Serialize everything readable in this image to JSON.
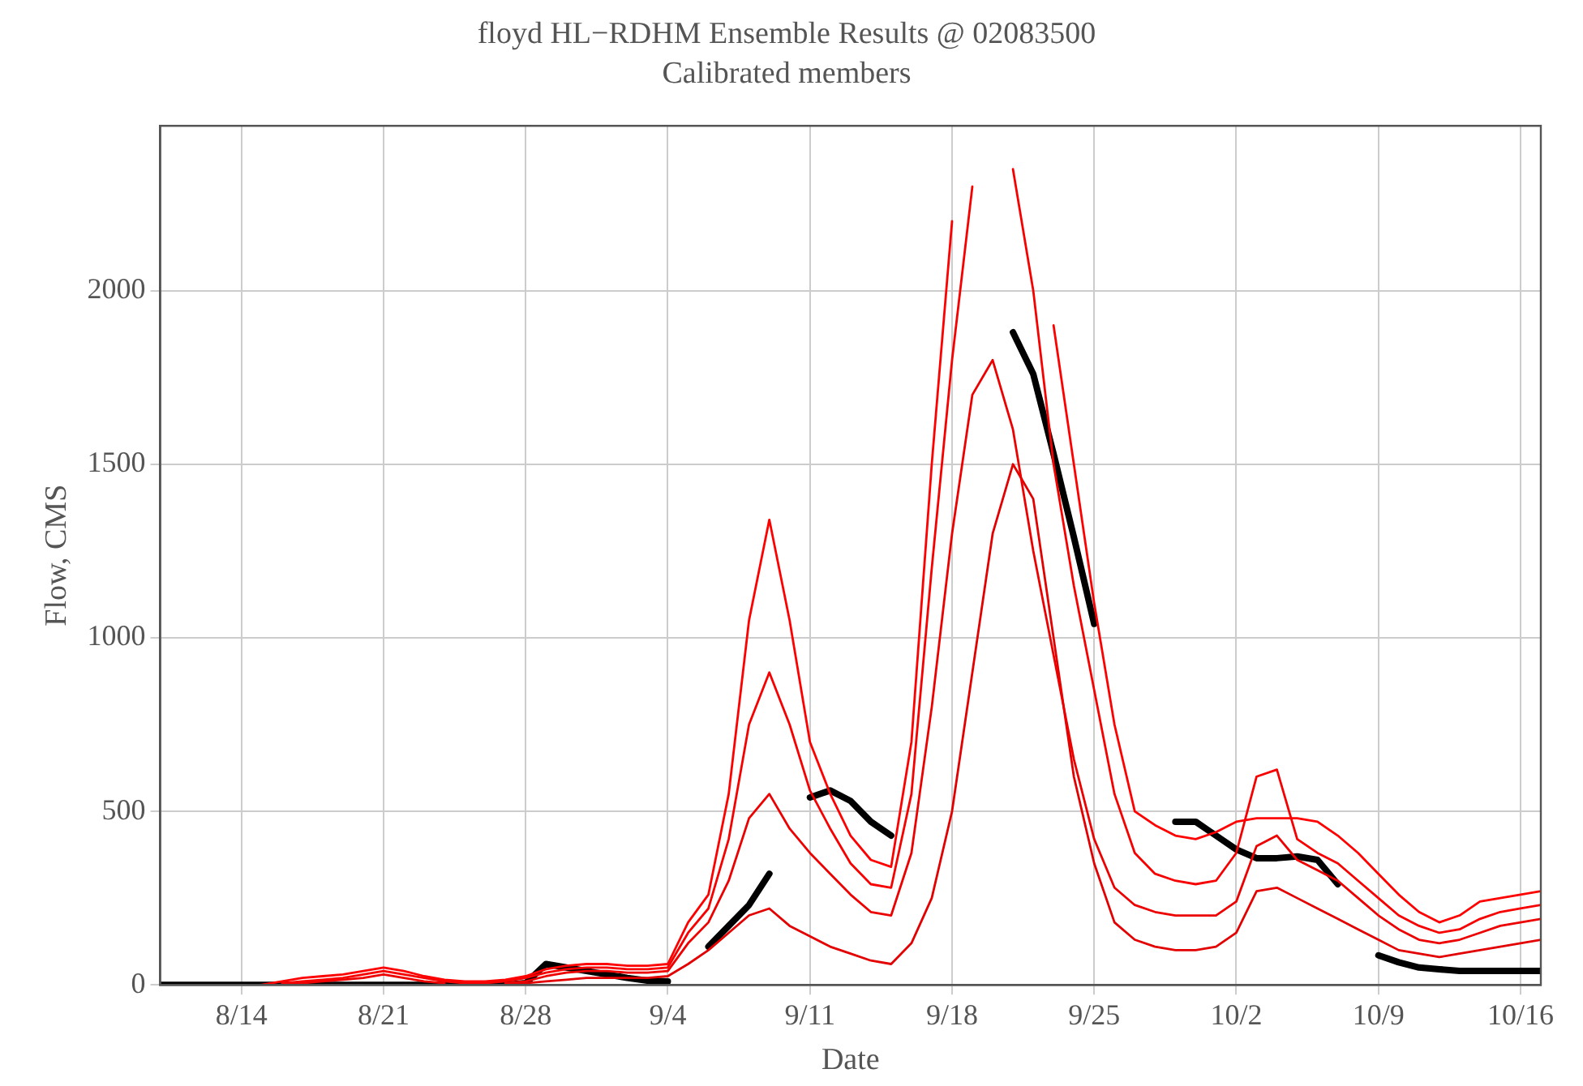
{
  "chart_data": {
    "type": "line",
    "title": "floyd HL−RDHM Ensemble Results @ 02083500",
    "subtitle": "Calibrated members",
    "xlabel": "Date",
    "ylabel": "Flow, CMS",
    "x": [
      "--08-10",
      "--08-11",
      "--08-12",
      "--08-13",
      "--08-14",
      "--08-15",
      "--08-16",
      "--08-17",
      "--08-18",
      "--08-19",
      "--08-20",
      "--08-21",
      "--08-22",
      "--08-23",
      "--08-24",
      "--08-25",
      "--08-26",
      "--08-27",
      "--08-28",
      "--08-29",
      "--08-30",
      "--08-31",
      "--09-01",
      "--09-02",
      "--09-03",
      "--09-04",
      "--09-05",
      "--09-06",
      "--09-07",
      "--09-08",
      "--09-09",
      "--09-10",
      "--09-11",
      "--09-12",
      "--09-13",
      "--09-14",
      "--09-15",
      "--09-16",
      "--09-17",
      "--09-18",
      "--09-19",
      "--09-20",
      "--09-21",
      "--09-22",
      "--09-23",
      "--09-24",
      "--09-25",
      "--09-26",
      "--09-27",
      "--09-28",
      "--09-29",
      "--09-30",
      "--10-01",
      "--10-02",
      "--10-03",
      "--10-04",
      "--10-05",
      "--10-06",
      "--10-07",
      "--10-08",
      "--10-09",
      "--10-10",
      "--10-11",
      "--10-12",
      "--10-13",
      "--10-14",
      "--10-15",
      "--10-16",
      "--10-17"
    ],
    "series": [
      {
        "color": "#ff0000",
        "values": [
          null,
          null,
          null,
          null,
          null,
          0,
          10,
          20,
          25,
          30,
          40,
          50,
          40,
          25,
          15,
          10,
          10,
          15,
          25,
          45,
          55,
          60,
          60,
          55,
          55,
          60,
          180,
          260,
          550,
          1050,
          1340,
          1050,
          700,
          550,
          430,
          360,
          340,
          700,
          1500,
          2200,
          null,
          null,
          null,
          null,
          1900,
          1500,
          1100,
          750,
          500,
          460,
          430,
          420,
          440,
          470,
          480,
          480,
          480,
          470,
          430,
          380,
          320,
          260,
          210,
          180,
          200,
          240,
          250,
          260,
          270
        ]
      },
      {
        "color": "#f60000",
        "values": [
          null,
          null,
          null,
          null,
          null,
          null,
          5,
          10,
          15,
          20,
          30,
          40,
          30,
          20,
          10,
          5,
          5,
          10,
          20,
          35,
          45,
          50,
          50,
          45,
          45,
          50,
          150,
          220,
          420,
          750,
          900,
          750,
          560,
          450,
          350,
          290,
          280,
          550,
          1200,
          1800,
          2300,
          null,
          2350,
          2000,
          1500,
          1150,
          850,
          550,
          380,
          320,
          300,
          290,
          300,
          380,
          600,
          620,
          420,
          380,
          350,
          300,
          250,
          200,
          170,
          150,
          160,
          190,
          210,
          220,
          230
        ]
      },
      {
        "color": "#ec0000",
        "values": [
          null,
          null,
          null,
          null,
          null,
          null,
          0,
          5,
          10,
          15,
          20,
          30,
          20,
          10,
          5,
          null,
          null,
          5,
          10,
          25,
          35,
          40,
          40,
          35,
          35,
          40,
          120,
          180,
          300,
          480,
          550,
          450,
          380,
          320,
          260,
          210,
          200,
          380,
          800,
          1300,
          1700,
          1800,
          1600,
          1250,
          950,
          650,
          420,
          280,
          230,
          210,
          200,
          200,
          200,
          240,
          400,
          430,
          360,
          330,
          300,
          250,
          200,
          160,
          130,
          120,
          130,
          150,
          170,
          180,
          190
        ]
      },
      {
        "color": "#e20000",
        "values": [
          null,
          null,
          null,
          null,
          null,
          null,
          null,
          null,
          null,
          null,
          null,
          null,
          null,
          null,
          null,
          null,
          null,
          0,
          5,
          10,
          15,
          20,
          20,
          20,
          20,
          25,
          60,
          100,
          150,
          200,
          220,
          170,
          140,
          110,
          90,
          70,
          60,
          120,
          250,
          500,
          900,
          1300,
          1500,
          1400,
          1000,
          600,
          350,
          180,
          130,
          110,
          100,
          100,
          110,
          150,
          270,
          280,
          250,
          220,
          190,
          160,
          130,
          100,
          90,
          80,
          90,
          100,
          110,
          120,
          130
        ]
      },
      {
        "color": "#000000",
        "values": [
          0,
          0,
          0,
          0,
          0,
          0,
          0,
          0,
          0,
          0,
          0,
          0,
          0,
          0,
          0,
          0,
          0,
          0,
          5,
          60,
          50,
          40,
          30,
          20,
          12,
          10,
          null,
          110,
          170,
          230,
          320,
          null,
          540,
          560,
          530,
          470,
          430,
          null,
          null,
          null,
          null,
          null,
          1880,
          1760,
          1530,
          1290,
          1040,
          null,
          null,
          null,
          470,
          470,
          430,
          390,
          365,
          365,
          370,
          360,
          290,
          null,
          85,
          65,
          50,
          45,
          40,
          40,
          40,
          40,
          40
        ]
      }
    ],
    "xlim": [
      "--08-10",
      "--10-17"
    ],
    "xticks": [
      {
        "value": "--08-14",
        "label": "8/14"
      },
      {
        "value": "--08-21",
        "label": "8/21"
      },
      {
        "value": "--08-28",
        "label": "8/28"
      },
      {
        "value": "--09-04",
        "label": "9/4"
      },
      {
        "value": "--09-11",
        "label": "9/11"
      },
      {
        "value": "--09-18",
        "label": "9/18"
      },
      {
        "value": "--09-25",
        "label": "9/25"
      },
      {
        "value": "--10-02",
        "label": "10/2"
      },
      {
        "value": "--10-09",
        "label": "10/9"
      },
      {
        "value": "--10-16",
        "label": "10/16"
      }
    ],
    "ylim": [
      0,
      2475
    ],
    "yticks": [
      0,
      500,
      1000,
      1500,
      2000
    ],
    "grid": true,
    "legend": false,
    "marker": "none",
    "line_style": "solid"
  }
}
